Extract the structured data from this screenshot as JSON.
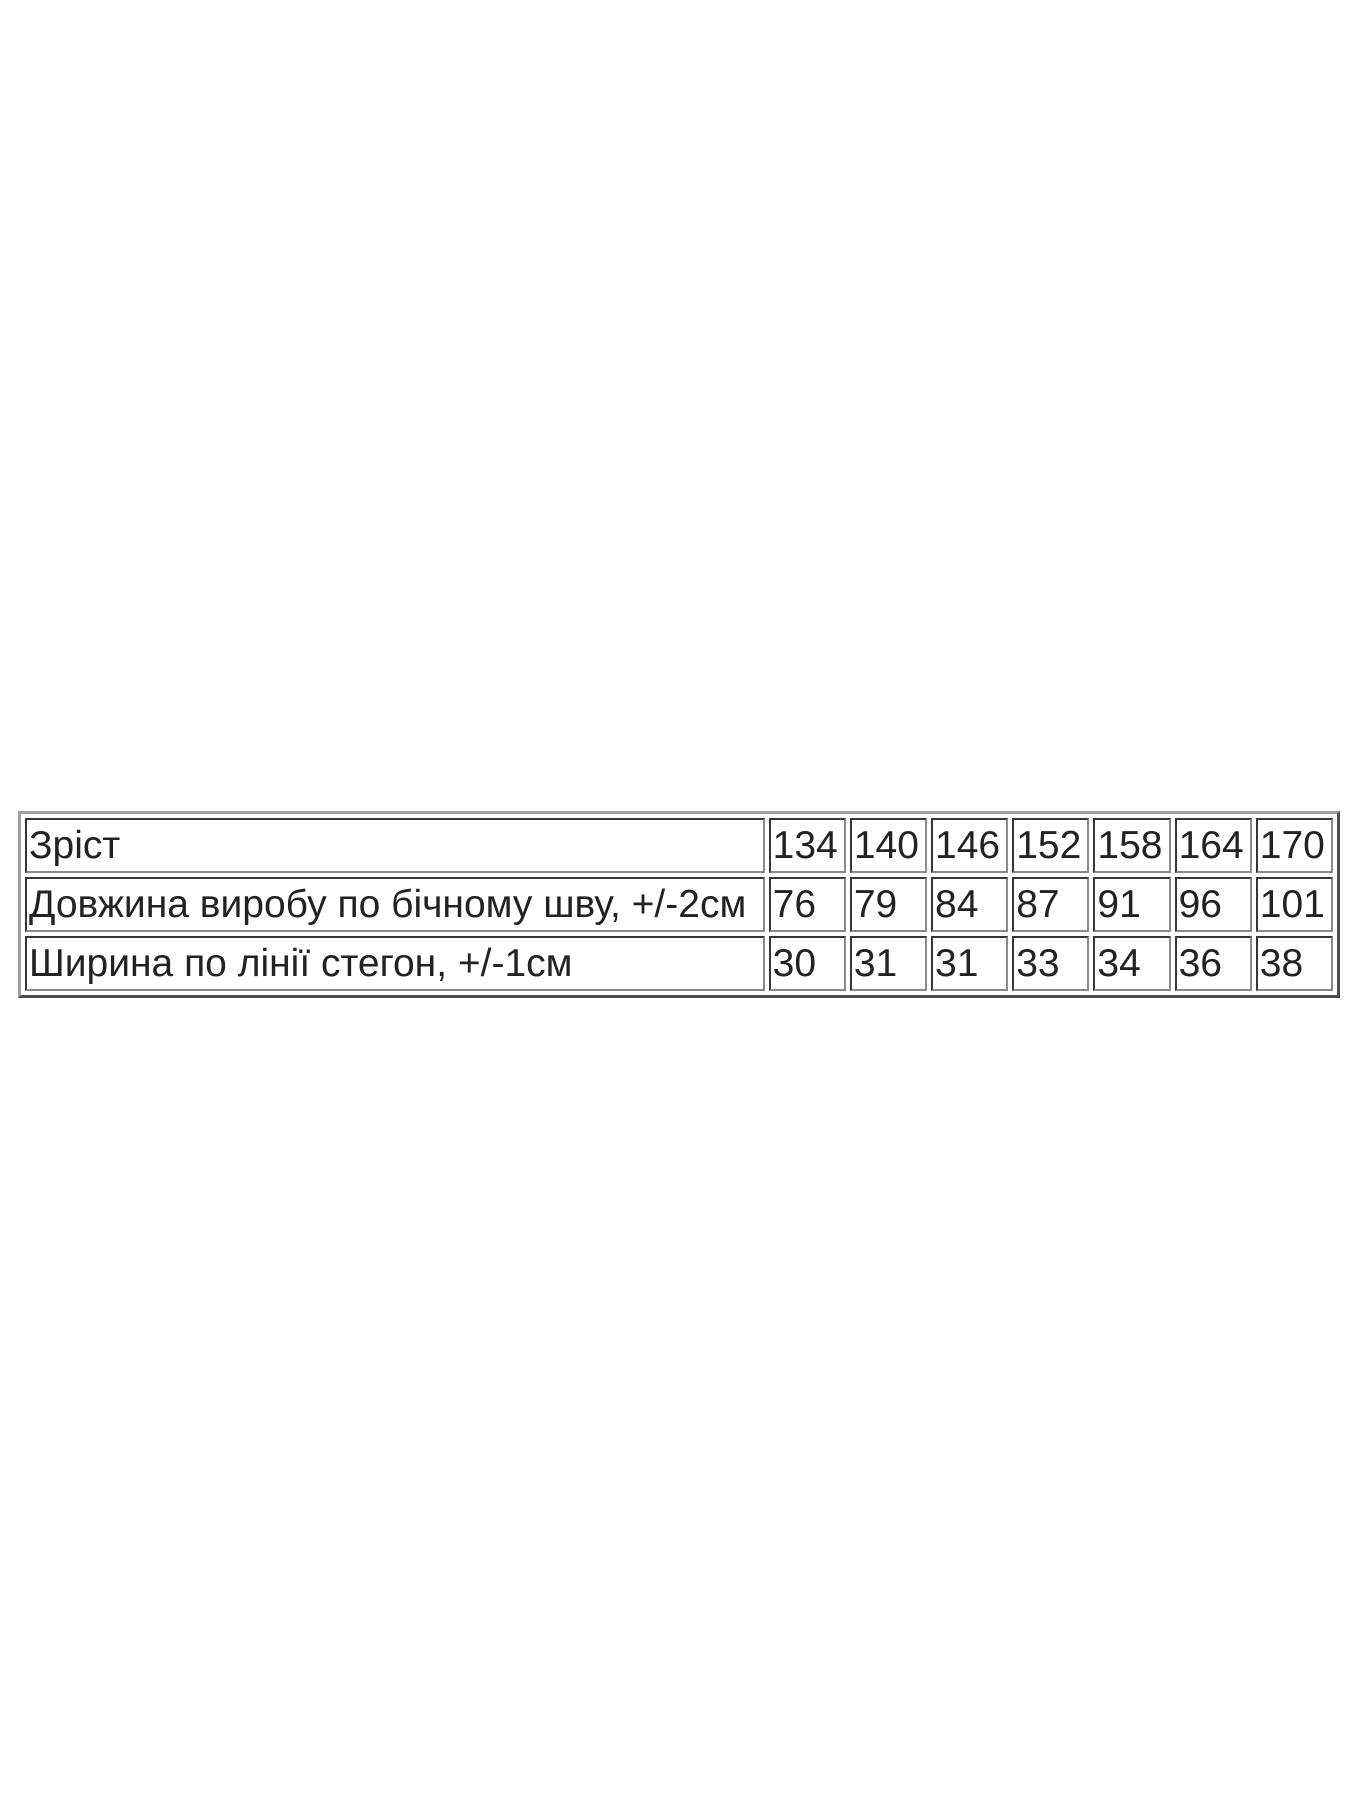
{
  "size_table": {
    "rows": [
      {
        "label": "Зріст",
        "values": [
          "134",
          "140",
          "146",
          "152",
          "158",
          "164",
          "170"
        ]
      },
      {
        "label": "Довжина виробу по бічному шву, +/-2см",
        "values": [
          "76",
          "79",
          "84",
          "87",
          "91",
          "96",
          "101"
        ]
      },
      {
        "label": "Ширина по лінії стегон, +/-1см",
        "values": [
          "30",
          "31",
          "31",
          "33",
          "34",
          "36",
          "38"
        ]
      }
    ]
  }
}
